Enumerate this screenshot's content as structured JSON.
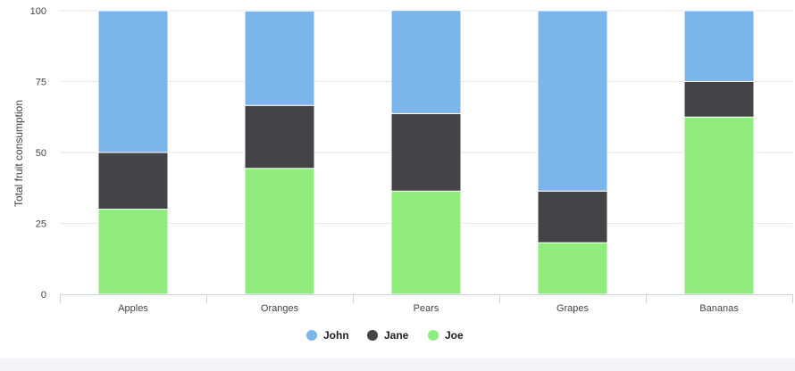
{
  "chart_data": {
    "type": "bar",
    "stacked": true,
    "categories": [
      "Apples",
      "Oranges",
      "Pears",
      "Grapes",
      "Bananas"
    ],
    "series": [
      {
        "name": "John",
        "color": "#7cb5ec",
        "values": [
          50,
          33.3,
          36.4,
          63.6,
          25
        ]
      },
      {
        "name": "Jane",
        "color": "#434348",
        "values": [
          20,
          22.2,
          27.3,
          18.2,
          12.5
        ]
      },
      {
        "name": "Joe",
        "color": "#90ed7d",
        "values": [
          30,
          44.4,
          36.4,
          18.2,
          62.5
        ]
      }
    ],
    "ylabel": "Total fruit consumption",
    "xlabel": "",
    "ylim": [
      0,
      100
    ],
    "yticks": [
      0,
      25,
      50,
      75,
      100
    ],
    "grid": true,
    "legend_position": "bottom-center"
  }
}
